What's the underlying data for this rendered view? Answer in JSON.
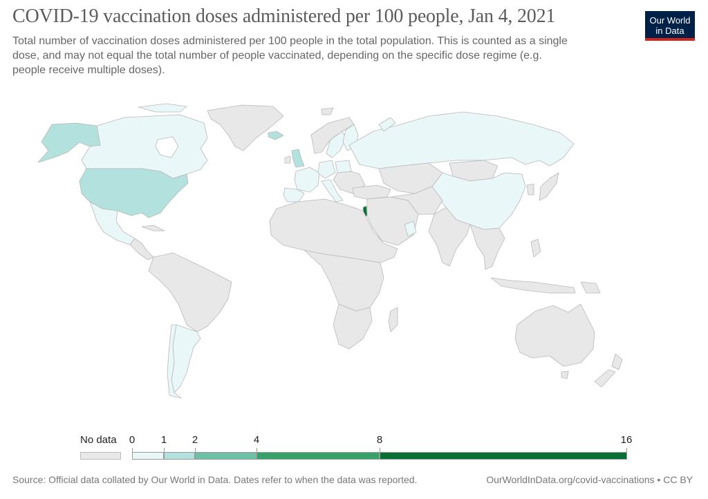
{
  "header": {
    "title": "COVID-19 vaccination doses administered per 100 people, Jan 4, 2021",
    "subtitle": "Total number of vaccination doses administered per 100 people in the total population. This is counted as a single\n dose, and may not equal the total number of people vaccinated, depending on the specific dose regime (e.g.\npeople receive multiple doses).",
    "logo_line1": "Our World",
    "logo_line2": "in Data"
  },
  "legend": {
    "no_data_label": "No data",
    "ticks": [
      "0",
      "1",
      "2",
      "4",
      "8",
      "16"
    ],
    "colors": [
      "#eaf7f8",
      "#b3e1dd",
      "#6cc1a6",
      "#36a26a",
      "#087035"
    ],
    "no_data_color": "#e8e8e8"
  },
  "map_colors": {
    "no_data": "#e8e8e8",
    "bin_0_1": "#eaf7f8",
    "bin_1_2": "#b3e1dd",
    "bin_8_16": "#087035",
    "border": "#b8b8b8"
  },
  "footer": {
    "source": "Source: Official data collated by Our World in Data. Dates refer to when the data was reported.",
    "url": "OurWorldInData.org/covid-vaccinations • CC BY"
  }
}
